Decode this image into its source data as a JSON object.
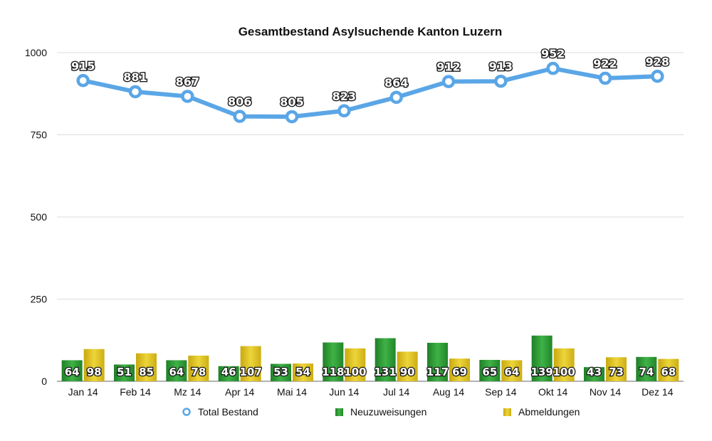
{
  "chart_data": {
    "type": "bar",
    "title": "Gesamtbestand Asylsuchende Kanton Luzern",
    "categories": [
      "Jan 14",
      "Feb 14",
      "Mz 14",
      "Apr 14",
      "Mai 14",
      "Jun 14",
      "Jul 14",
      "Aug 14",
      "Sep 14",
      "Okt 14",
      "Nov 14",
      "Dez 14"
    ],
    "ylim": [
      0,
      1000
    ],
    "yticks": [
      "0",
      "250",
      "500",
      "750",
      "1000"
    ],
    "grid": true,
    "legend_position": "bottom",
    "series": [
      {
        "name": "Total Bestand",
        "type": "line",
        "color": "#5aa6e6",
        "values": [
          915,
          881,
          867,
          806,
          805,
          823,
          864,
          912,
          913,
          952,
          922,
          928
        ]
      },
      {
        "name": "Neuzuweisungen",
        "type": "bar",
        "color": "#2e9b35",
        "values": [
          64,
          51,
          64,
          46,
          53,
          118,
          131,
          117,
          65,
          139,
          43,
          74
        ]
      },
      {
        "name": "Abmeldungen",
        "type": "bar",
        "color": "#dcc21d",
        "values": [
          98,
          85,
          78,
          107,
          54,
          100,
          90,
          69,
          64,
          100,
          73,
          68
        ]
      }
    ]
  }
}
